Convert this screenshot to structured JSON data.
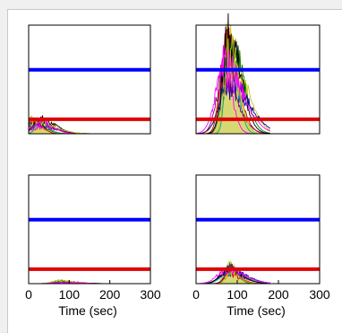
{
  "chart_data": [
    {
      "type": "line",
      "panel": "top-left",
      "xlim": [
        0,
        300
      ],
      "threshold_lines": [
        {
          "name": "",
          "color": "#0000ff",
          "level": 0.62
        },
        {
          "name": "",
          "color": "#e00000",
          "level": 0.14
        }
      ],
      "trace_peak_x": 20,
      "trace_peak_level": 0.14,
      "x_tick_labels": [],
      "xlabel": ""
    },
    {
      "type": "line",
      "panel": "top-right",
      "xlim": [
        0,
        300
      ],
      "threshold_lines": [
        {
          "name": "",
          "color": "#0000ff",
          "level": 0.62
        },
        {
          "name": "",
          "color": "#e00000",
          "level": 0.14
        }
      ],
      "trace_peak_x": 75,
      "trace_peak_level": 1.0,
      "x_tick_labels": [],
      "xlabel": ""
    },
    {
      "type": "line",
      "panel": "bottom-left",
      "xlim": [
        0,
        300
      ],
      "threshold_lines": [
        {
          "name": "",
          "color": "#0000ff",
          "level": 0.62
        },
        {
          "name": "",
          "color": "#e00000",
          "level": 0.14
        }
      ],
      "trace_peak_x": 80,
      "trace_peak_level": 0.03,
      "x_tick_labels": [
        "0",
        "100",
        "200",
        "300"
      ],
      "xlabel": "Time (sec)"
    },
    {
      "type": "line",
      "panel": "bottom-right",
      "xlim": [
        0,
        300
      ],
      "threshold_lines": [
        {
          "name": "",
          "color": "#0000ff",
          "level": 0.62
        },
        {
          "name": "",
          "color": "#e00000",
          "level": 0.14
        }
      ],
      "trace_peak_x": 80,
      "trace_peak_level": 0.2,
      "x_tick_labels": [
        "0",
        "100",
        "200",
        "300"
      ],
      "xlabel": "Time (sec)"
    }
  ],
  "colors": {
    "trace_palette": [
      "#c8c800",
      "#ff00ff",
      "#008000",
      "#0000a0",
      "#c00000",
      "#00a0a0",
      "#800080",
      "#000000"
    ]
  }
}
